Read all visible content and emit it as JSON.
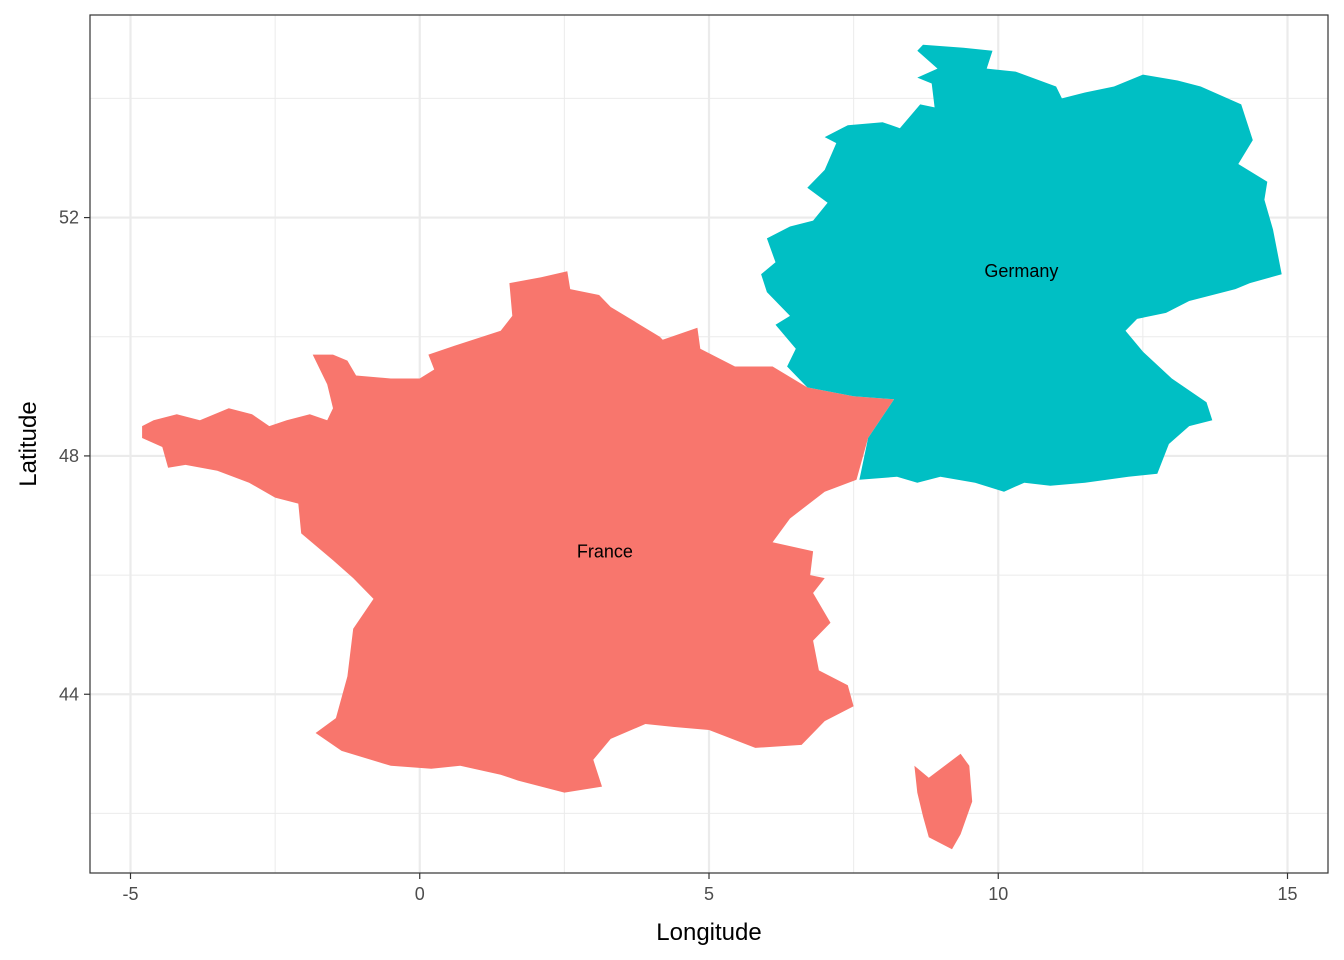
{
  "chart_data": {
    "type": "map",
    "xlabel": "Longitude",
    "ylabel": "Latitude",
    "xlim": [
      -5.7,
      15.7
    ],
    "ylim": [
      41.0,
      55.4
    ],
    "x_ticks": [
      -5,
      0,
      5,
      10,
      15
    ],
    "x_tick_labels": [
      "-5",
      "0",
      "5",
      "10",
      "15"
    ],
    "y_ticks": [
      44,
      48,
      52
    ],
    "y_tick_labels": [
      "44",
      "48",
      "52"
    ],
    "x_minor_ticks": [
      -2.5,
      2.5,
      7.5,
      12.5
    ],
    "y_minor_ticks": [
      42,
      46,
      50,
      54
    ],
    "grid": true,
    "legend": "none",
    "regions": [
      {
        "name": "France",
        "color": "#F8766D",
        "label_pos": [
          3.2,
          46.4
        ],
        "polygons": [
          [
            [
              -4.8,
              48.5
            ],
            [
              -4.6,
              48.6
            ],
            [
              -4.2,
              48.7
            ],
            [
              -3.8,
              48.6
            ],
            [
              -3.3,
              48.8
            ],
            [
              -2.9,
              48.7
            ],
            [
              -2.6,
              48.5
            ],
            [
              -2.3,
              48.6
            ],
            [
              -1.9,
              48.7
            ],
            [
              -1.6,
              48.6
            ],
            [
              -1.5,
              48.8
            ],
            [
              -1.6,
              49.2
            ],
            [
              -1.85,
              49.7
            ],
            [
              -1.5,
              49.7
            ],
            [
              -1.25,
              49.6
            ],
            [
              -1.1,
              49.35
            ],
            [
              -0.5,
              49.3
            ],
            [
              0.0,
              49.3
            ],
            [
              0.25,
              49.45
            ],
            [
              0.15,
              49.7
            ],
            [
              0.6,
              49.85
            ],
            [
              1.4,
              50.1
            ],
            [
              1.6,
              50.35
            ],
            [
              1.55,
              50.9
            ],
            [
              2.1,
              51.0
            ],
            [
              2.55,
              51.1
            ],
            [
              2.6,
              50.8
            ],
            [
              3.1,
              50.7
            ],
            [
              3.3,
              50.5
            ],
            [
              4.15,
              50.0
            ],
            [
              4.2,
              49.95
            ],
            [
              4.8,
              50.15
            ],
            [
              4.85,
              49.8
            ],
            [
              5.45,
              49.5
            ],
            [
              6.1,
              49.5
            ],
            [
              6.7,
              49.15
            ],
            [
              7.5,
              49.0
            ],
            [
              8.2,
              48.95
            ],
            [
              7.75,
              48.3
            ],
            [
              7.55,
              47.6
            ],
            [
              7.0,
              47.4
            ],
            [
              6.4,
              46.95
            ],
            [
              6.1,
              46.55
            ],
            [
              6.8,
              46.4
            ],
            [
              6.75,
              46.0
            ],
            [
              7.0,
              45.95
            ],
            [
              6.8,
              45.7
            ],
            [
              7.1,
              45.2
            ],
            [
              6.8,
              44.9
            ],
            [
              6.9,
              44.4
            ],
            [
              7.4,
              44.15
            ],
            [
              7.5,
              43.8
            ],
            [
              7.0,
              43.55
            ],
            [
              6.6,
              43.15
            ],
            [
              5.8,
              43.1
            ],
            [
              5.0,
              43.4
            ],
            [
              4.4,
              43.45
            ],
            [
              3.9,
              43.5
            ],
            [
              3.3,
              43.25
            ],
            [
              3.0,
              42.9
            ],
            [
              3.15,
              42.45
            ],
            [
              2.5,
              42.35
            ],
            [
              1.7,
              42.55
            ],
            [
              1.4,
              42.65
            ],
            [
              0.7,
              42.8
            ],
            [
              0.2,
              42.75
            ],
            [
              -0.5,
              42.8
            ],
            [
              -1.35,
              43.05
            ],
            [
              -1.8,
              43.35
            ],
            [
              -1.45,
              43.6
            ],
            [
              -1.25,
              44.3
            ],
            [
              -1.15,
              45.1
            ],
            [
              -0.8,
              45.6
            ],
            [
              -1.15,
              45.95
            ],
            [
              -1.5,
              46.25
            ],
            [
              -2.05,
              46.7
            ],
            [
              -2.1,
              47.2
            ],
            [
              -2.5,
              47.3
            ],
            [
              -2.95,
              47.55
            ],
            [
              -3.5,
              47.75
            ],
            [
              -4.05,
              47.85
            ],
            [
              -4.35,
              47.8
            ],
            [
              -4.45,
              48.15
            ],
            [
              -4.8,
              48.3
            ]
          ],
          [
            [
              8.55,
              42.8
            ],
            [
              8.8,
              42.6
            ],
            [
              9.35,
              43.0
            ],
            [
              9.5,
              42.8
            ],
            [
              9.55,
              42.2
            ],
            [
              9.35,
              41.65
            ],
            [
              9.2,
              41.4
            ],
            [
              8.8,
              41.6
            ],
            [
              8.7,
              41.95
            ],
            [
              8.6,
              42.35
            ]
          ]
        ]
      },
      {
        "name": "Germany",
        "color": "#00BFC4",
        "label_pos": [
          10.4,
          51.1
        ],
        "polygons": [
          [
            [
              8.6,
              54.8
            ],
            [
              8.7,
              54.9
            ],
            [
              9.4,
              54.85
            ],
            [
              9.9,
              54.8
            ],
            [
              9.8,
              54.5
            ],
            [
              10.3,
              54.45
            ],
            [
              11.0,
              54.2
            ],
            [
              11.1,
              54.0
            ],
            [
              11.5,
              54.1
            ],
            [
              12.0,
              54.2
            ],
            [
              12.5,
              54.4
            ],
            [
              13.1,
              54.3
            ],
            [
              13.5,
              54.2
            ],
            [
              14.2,
              53.9
            ],
            [
              14.4,
              53.3
            ],
            [
              14.15,
              52.9
            ],
            [
              14.65,
              52.6
            ],
            [
              14.6,
              52.3
            ],
            [
              14.75,
              51.8
            ],
            [
              14.9,
              51.05
            ],
            [
              14.35,
              50.9
            ],
            [
              14.1,
              50.8
            ],
            [
              13.3,
              50.6
            ],
            [
              12.9,
              50.4
            ],
            [
              12.4,
              50.3
            ],
            [
              12.2,
              50.1
            ],
            [
              12.5,
              49.75
            ],
            [
              13.0,
              49.3
            ],
            [
              13.6,
              48.9
            ],
            [
              13.7,
              48.6
            ],
            [
              13.3,
              48.5
            ],
            [
              12.95,
              48.2
            ],
            [
              12.75,
              47.7
            ],
            [
              12.25,
              47.65
            ],
            [
              11.5,
              47.55
            ],
            [
              10.9,
              47.5
            ],
            [
              10.45,
              47.55
            ],
            [
              10.1,
              47.4
            ],
            [
              9.6,
              47.55
            ],
            [
              9.0,
              47.65
            ],
            [
              8.6,
              47.55
            ],
            [
              8.25,
              47.65
            ],
            [
              7.6,
              47.6
            ],
            [
              7.75,
              48.3
            ],
            [
              8.2,
              48.95
            ],
            [
              7.5,
              49.0
            ],
            [
              6.7,
              49.15
            ],
            [
              6.35,
              49.5
            ],
            [
              6.5,
              49.8
            ],
            [
              6.15,
              50.2
            ],
            [
              6.4,
              50.35
            ],
            [
              6.0,
              50.75
            ],
            [
              5.9,
              51.05
            ],
            [
              6.15,
              51.25
            ],
            [
              6.0,
              51.65
            ],
            [
              6.4,
              51.85
            ],
            [
              6.8,
              51.95
            ],
            [
              7.05,
              52.25
            ],
            [
              6.7,
              52.5
            ],
            [
              7.0,
              52.8
            ],
            [
              7.2,
              53.25
            ],
            [
              7.0,
              53.35
            ],
            [
              7.4,
              53.55
            ],
            [
              8.0,
              53.6
            ],
            [
              8.3,
              53.5
            ],
            [
              8.65,
              53.9
            ],
            [
              8.9,
              53.85
            ],
            [
              8.85,
              54.25
            ],
            [
              8.6,
              54.35
            ],
            [
              8.95,
              54.5
            ]
          ]
        ]
      }
    ]
  }
}
